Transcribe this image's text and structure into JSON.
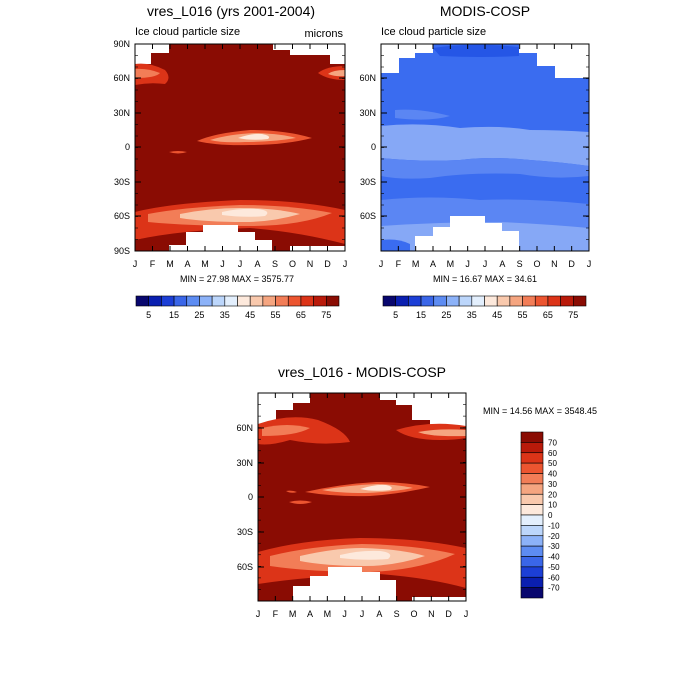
{
  "month_labels": [
    "J",
    "F",
    "M",
    "A",
    "M",
    "J",
    "J",
    "A",
    "S",
    "O",
    "N",
    "D",
    "J"
  ],
  "colors": {
    "red_scale": [
      "#08076e",
      "#0a1fb0",
      "#1c3fd6",
      "#3a66e8",
      "#5d8cf2",
      "#8cb2f8",
      "#bcd6fb",
      "#e3effd",
      "#fde9dc",
      "#f9c9ad",
      "#f5a580",
      "#f27d57",
      "#ec5530",
      "#dc3418",
      "#b91a0a",
      "#8a0c03"
    ],
    "blue_modis": [
      "#2556e6",
      "#3a6cf0",
      "#5b86f3",
      "#86a8f6"
    ],
    "diff_scale": [
      "#08076e",
      "#0a1fb0",
      "#1c3fd6",
      "#3a66e8",
      "#5d8cf2",
      "#8cb2f8",
      "#bcd6fb",
      "#e3effd",
      "#fde9dc",
      "#f9c9ad",
      "#f5a580",
      "#f27d57",
      "#ec5530",
      "#dc3418",
      "#b91a0a",
      "#8a0c03"
    ]
  },
  "chart_data": [
    {
      "id": "panel1",
      "type": "heatmap",
      "title": "vres_L016 (yrs 2001-2004)",
      "subtitle_left": "Ice cloud particle size",
      "subtitle_right": "microns",
      "x_ticks": [
        "J",
        "F",
        "M",
        "A",
        "M",
        "J",
        "J",
        "A",
        "S",
        "O",
        "N",
        "D",
        "J"
      ],
      "y_ticks": [
        "90N",
        "60N",
        "30N",
        "0",
        "30S",
        "60S",
        "90S"
      ],
      "stats": "MIN =  27.98 MAX = 3575.77",
      "colorbar_ticks": [
        "5",
        "15",
        "25",
        "35",
        "45",
        "55",
        "65",
        "75"
      ],
      "background_level": 75,
      "features": [
        {
          "name": "tropical band",
          "lat": 10,
          "months": [
            4,
            9
          ],
          "min_value": 45
        },
        {
          "name": "southern band",
          "lat": -57,
          "months": [
            0,
            12
          ],
          "min_value": 30
        },
        {
          "name": "northern band",
          "lat": 63,
          "months": [
            0,
            2
          ],
          "min_value": 60
        }
      ]
    },
    {
      "id": "panel2",
      "type": "heatmap",
      "title": "MODIS-COSP",
      "subtitle_left": "Ice cloud particle size",
      "subtitle_right": "",
      "x_ticks": [
        "J",
        "F",
        "M",
        "A",
        "M",
        "J",
        "J",
        "A",
        "S",
        "O",
        "N",
        "D",
        "J"
      ],
      "y_ticks": [
        "60N",
        "30N",
        "0",
        "30S",
        "60S"
      ],
      "stats": "MIN =  16.67 MAX =  34.61",
      "colorbar_ticks": [
        "5",
        "15",
        "25",
        "35",
        "45",
        "55",
        "65",
        "75"
      ],
      "value_range": [
        16.67,
        34.61
      ]
    },
    {
      "id": "panel3",
      "type": "heatmap",
      "title": "vres_L016 - MODIS-COSP",
      "x_ticks": [
        "J",
        "F",
        "M",
        "A",
        "M",
        "J",
        "J",
        "A",
        "S",
        "O",
        "N",
        "D",
        "J"
      ],
      "y_ticks": [
        "60N",
        "30N",
        "0",
        "30S",
        "60S"
      ],
      "stats": "MIN =  14.56 MAX = 3548.45",
      "colorbar_ticks": [
        "70",
        "60",
        "50",
        "40",
        "30",
        "20",
        "10",
        "0",
        "-10",
        "-20",
        "-30",
        "-40",
        "-50",
        "-60",
        "-70"
      ],
      "background_level": 70
    }
  ]
}
